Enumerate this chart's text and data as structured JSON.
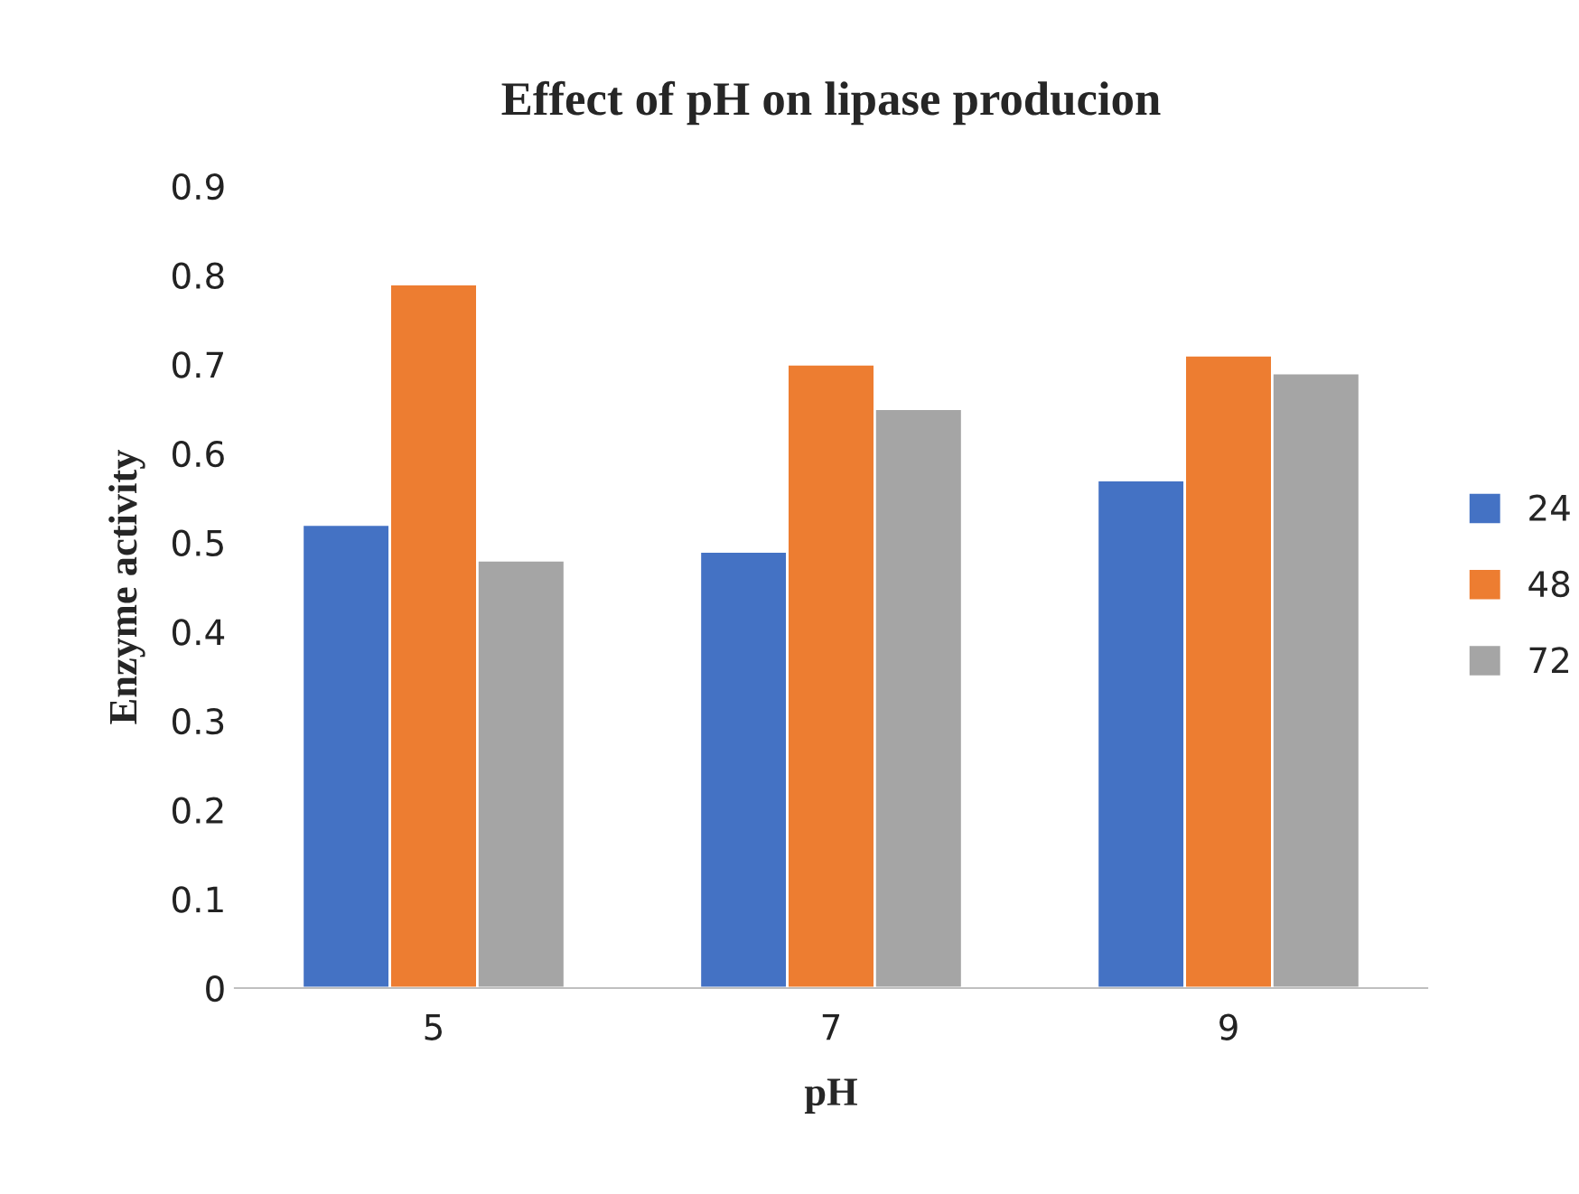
{
  "chart_data": {
    "type": "bar",
    "title": "Effect of pH on lipase producion",
    "xlabel": "pH",
    "ylabel": "Enzyme activity",
    "categories": [
      "5",
      "7",
      "9"
    ],
    "series": [
      {
        "name": "24",
        "color": "#4472c4",
        "values": [
          0.52,
          0.49,
          0.57
        ]
      },
      {
        "name": "48",
        "color": "#ed7d31",
        "values": [
          0.79,
          0.7,
          0.71
        ]
      },
      {
        "name": "72",
        "color": "#a5a5a5",
        "values": [
          0.48,
          0.65,
          0.69
        ]
      }
    ],
    "ylim": [
      0,
      0.9
    ],
    "yticks": [
      0,
      0.1,
      0.2,
      0.3,
      0.4,
      0.5,
      0.6,
      0.7,
      0.8,
      0.9
    ],
    "grid": false,
    "legend": "right"
  }
}
